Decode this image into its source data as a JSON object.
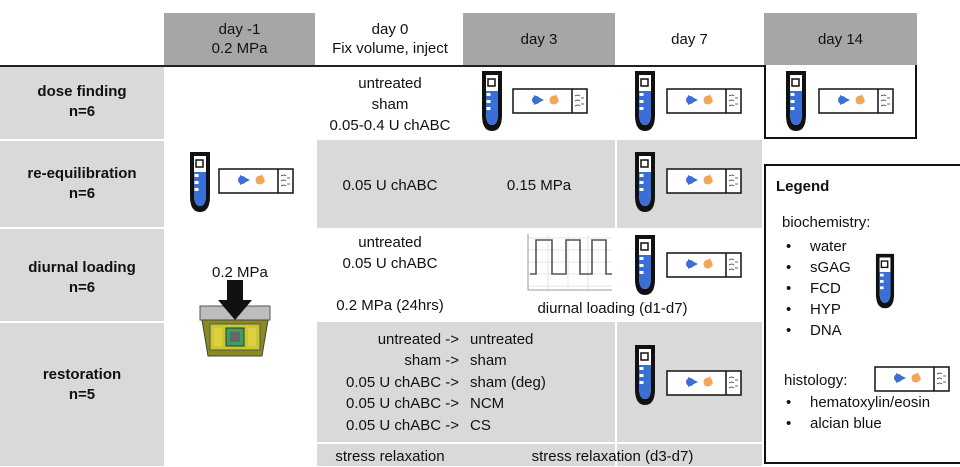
{
  "headers": {
    "day_m1": [
      "day -1",
      "0.2 MPa"
    ],
    "day_0": [
      "day 0",
      "Fix volume, inject"
    ],
    "day_3": "day 3",
    "day_7": "day 7",
    "day_14": "day 14"
  },
  "rows": {
    "dose_finding": [
      "dose finding",
      "n=6"
    ],
    "re_equilibration": [
      "re-equilibration",
      "n=6"
    ],
    "diurnal_loading": [
      "diurnal loading",
      "n=6"
    ],
    "restoration": [
      "restoration",
      "n=5"
    ]
  },
  "cells": {
    "dose_day0": [
      "untreated",
      "sham",
      "0.05-0.4 U chABC"
    ],
    "reeq_day0": "0.05 U chABC",
    "reeq_day3": "0.15 MPa",
    "diurnal_day0": [
      "untreated",
      "0.05 U chABC"
    ],
    "diurnal_day0_load": "0.2 MPa (24hrs)",
    "diurnal_loading_label": "diurnal loading (d1-d7)",
    "press_label": "0.2 MPa",
    "restore_from": [
      "untreated ->",
      "sham ->",
      "0.05 U chABC ->",
      "0.05 U chABC ->",
      "0.05 U chABC ->"
    ],
    "restore_to": [
      "untreated",
      "sham",
      "sham (deg)",
      "NCM",
      "CS"
    ],
    "stress_day0": "stress relaxation",
    "stress_range": "stress relaxation (d3-d7)"
  },
  "legend": {
    "title": "Legend",
    "biochemistry_label": "biochemistry:",
    "biochemistry_items": [
      "water",
      "sGAG",
      "FCD",
      "HYP",
      "DNA"
    ],
    "histology_label": "histology:",
    "histology_items": [
      "hematoxylin/eosin",
      "alcian blue"
    ]
  },
  "colors": {
    "header_dark": "#a6a6a6",
    "cell_gray": "#d9d9d9",
    "tube_blue": "#3a6fd8",
    "stain_blue": "#3b6fd4",
    "stain_orange": "#f2a65a"
  }
}
